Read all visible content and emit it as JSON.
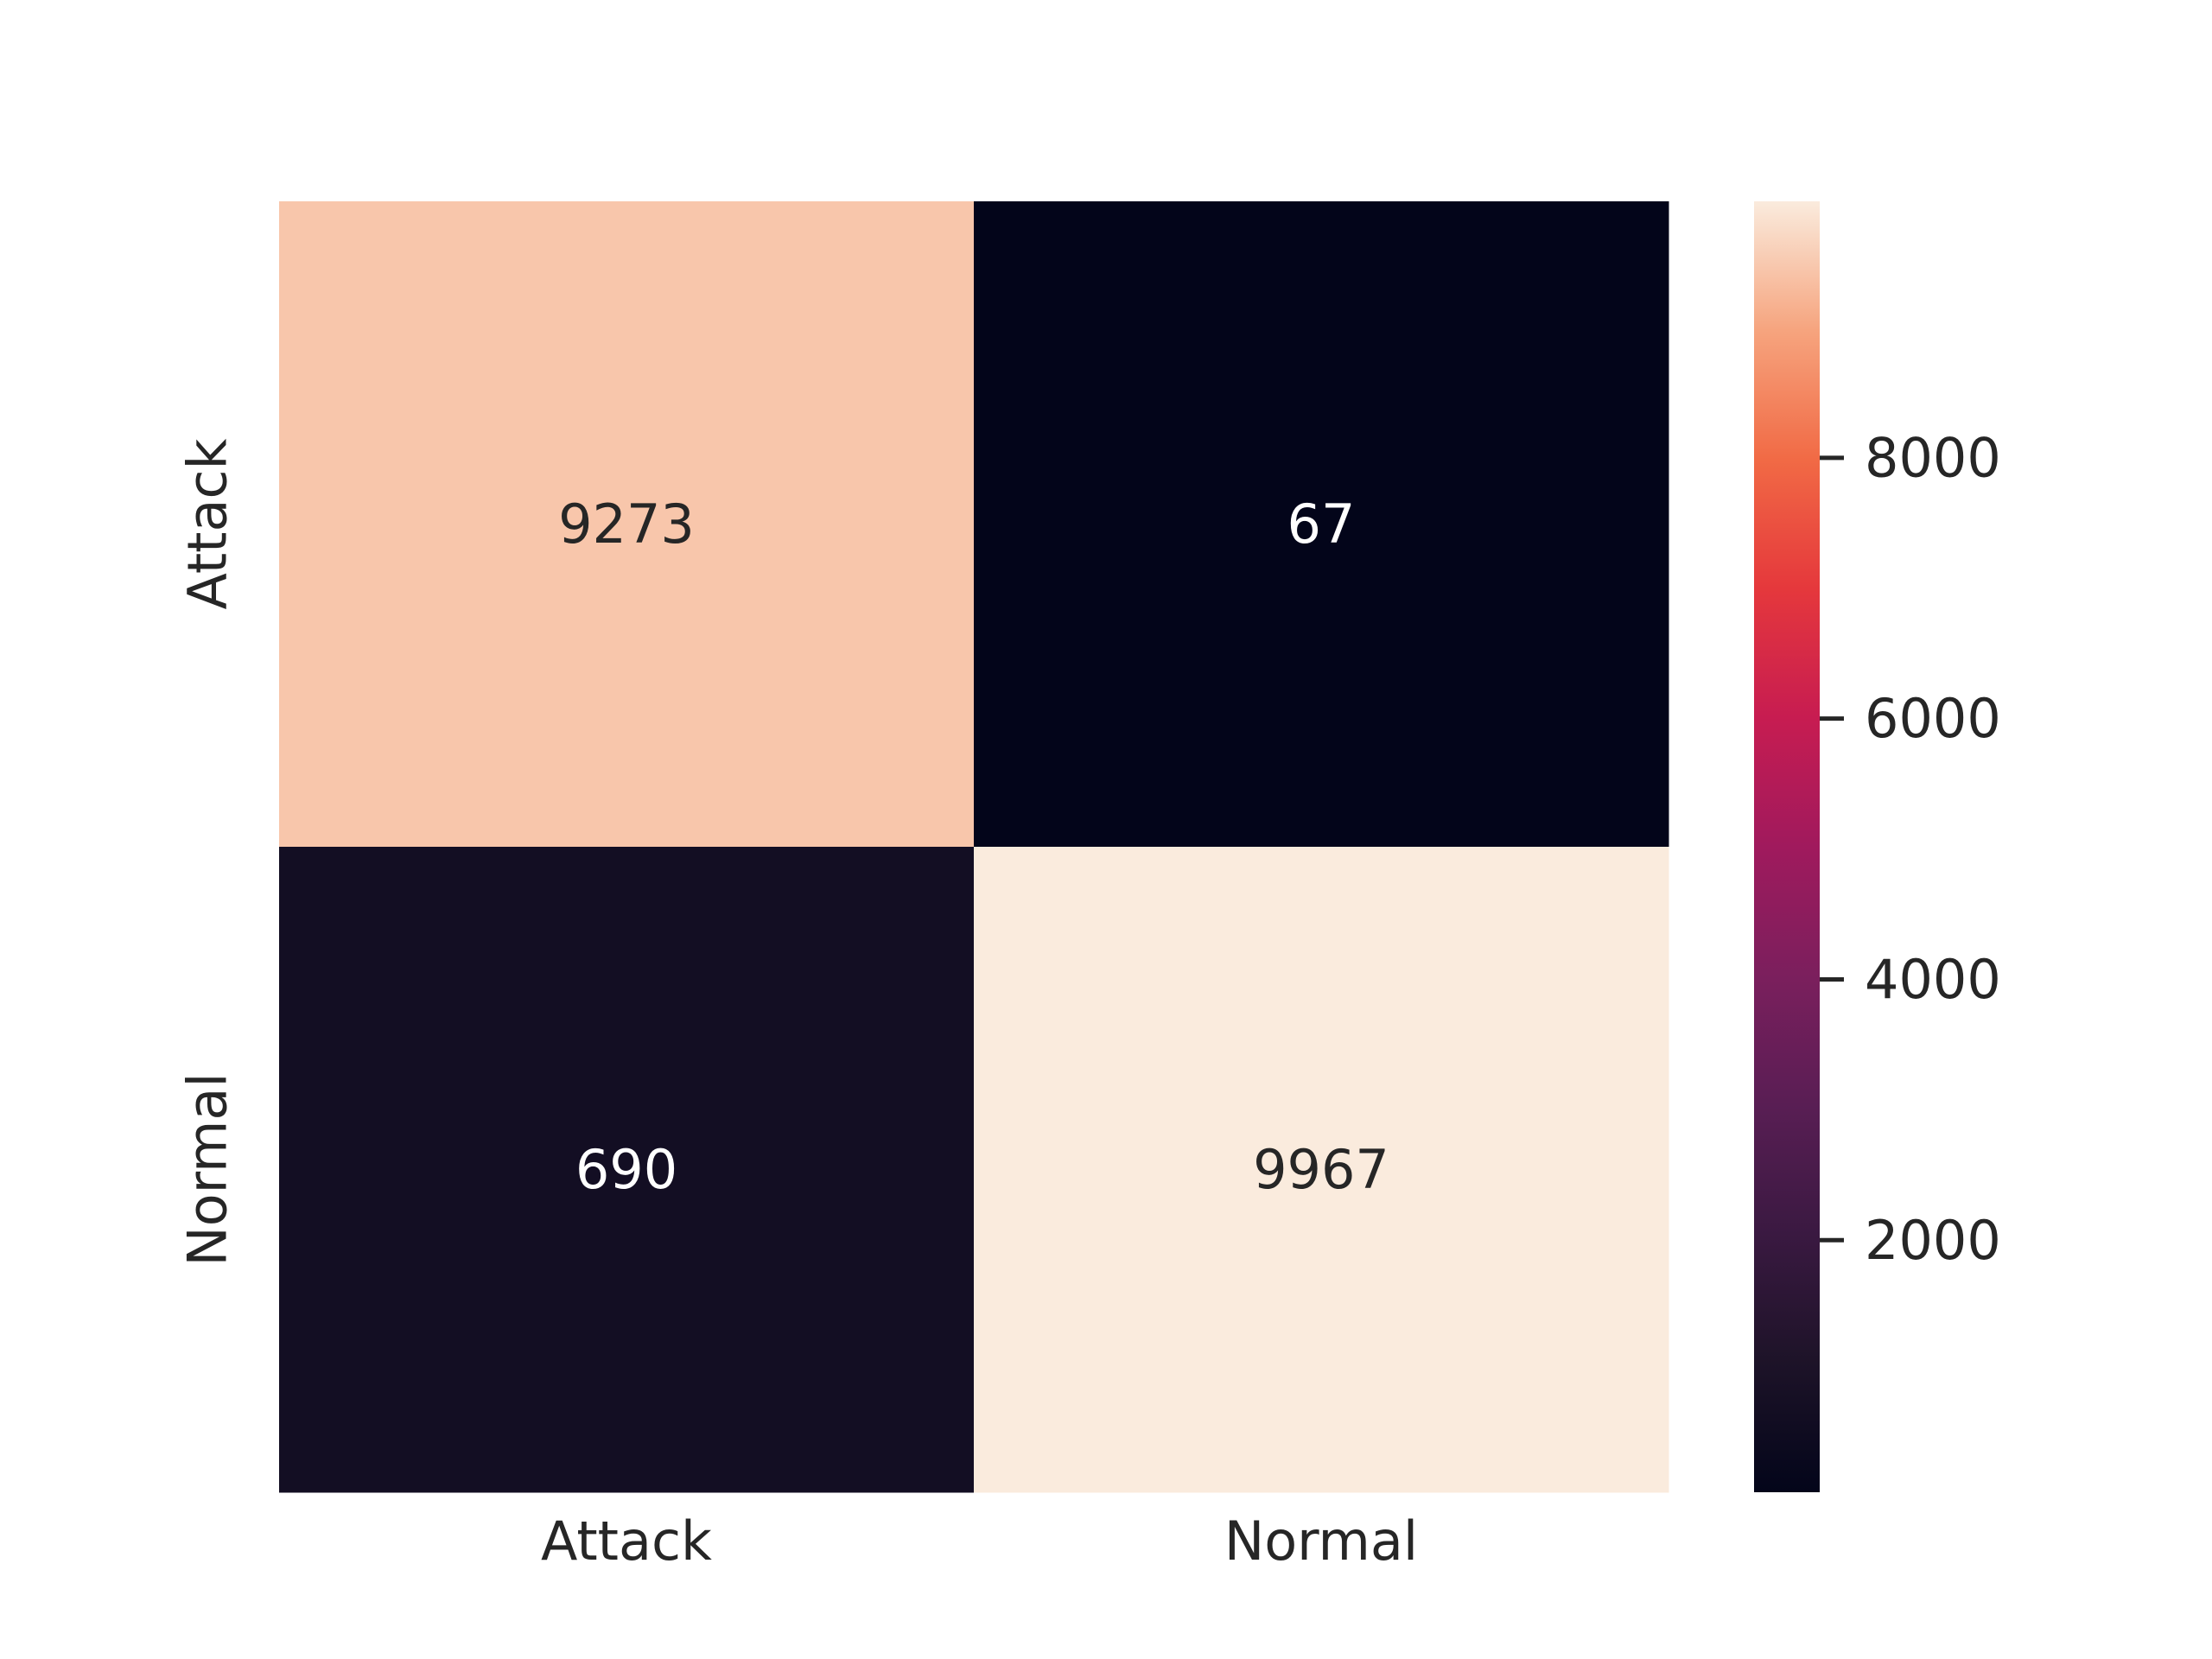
{
  "chart_data": {
    "type": "heatmap",
    "title": "",
    "xlabel": "",
    "ylabel": "",
    "x_categories": [
      "Attack",
      "Normal"
    ],
    "y_categories": [
      "Attack",
      "Normal"
    ],
    "values": [
      [
        9273,
        67
      ],
      [
        690,
        9967
      ]
    ],
    "cell_labels": [
      [
        "9273",
        "67"
      ],
      [
        "690",
        "9967"
      ]
    ],
    "colorbar": {
      "colormap": "rocket",
      "range": [
        67,
        9967
      ],
      "ticks": [
        2000,
        4000,
        6000,
        8000
      ],
      "tick_labels": [
        "2000",
        "4000",
        "6000",
        "8000"
      ],
      "placement": "right"
    },
    "grid": false,
    "legend": "none"
  }
}
